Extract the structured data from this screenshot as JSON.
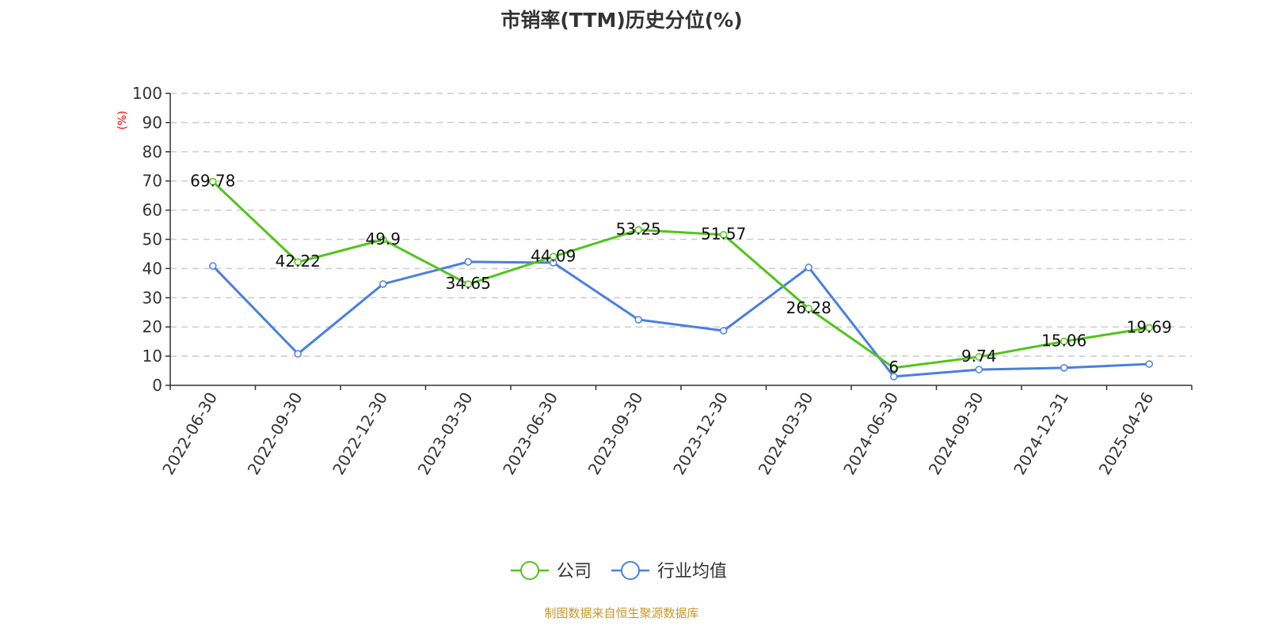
{
  "chart_data": {
    "type": "line",
    "title": "市销率(TTM)历史分位(%)",
    "ylabel": "(%)",
    "xlabel": "",
    "ylim": [
      0,
      100
    ],
    "yticks": [
      0,
      10,
      20,
      30,
      40,
      50,
      60,
      70,
      80,
      90,
      100
    ],
    "grid": true,
    "legend_position": "bottom",
    "categories": [
      "2022-06-30",
      "2022-09-30",
      "2022-12-30",
      "2023-03-30",
      "2023-06-30",
      "2023-09-30",
      "2023-12-30",
      "2024-03-30",
      "2024-06-30",
      "2024-09-30",
      "2024-12-31",
      "2025-04-26"
    ],
    "series": [
      {
        "name": "公司",
        "color": "#52c41a",
        "values": [
          69.78,
          42.22,
          49.9,
          34.65,
          44.09,
          53.25,
          51.57,
          26.28,
          6,
          9.74,
          15.06,
          19.69
        ],
        "labels": [
          "69.78",
          "42.22",
          "49.9",
          "34.65",
          "44.09",
          "53.25",
          "51.57",
          "26.28",
          "6",
          "9.74",
          "15.06",
          "19.69"
        ]
      },
      {
        "name": "行业均值",
        "color": "#4a7fe0",
        "values": [
          40.9,
          10.8,
          34.7,
          42.3,
          42,
          22.5,
          18.7,
          40.4,
          3,
          5.4,
          6,
          7.3
        ]
      }
    ],
    "source": "制图数据来自恒生聚源数据库"
  }
}
